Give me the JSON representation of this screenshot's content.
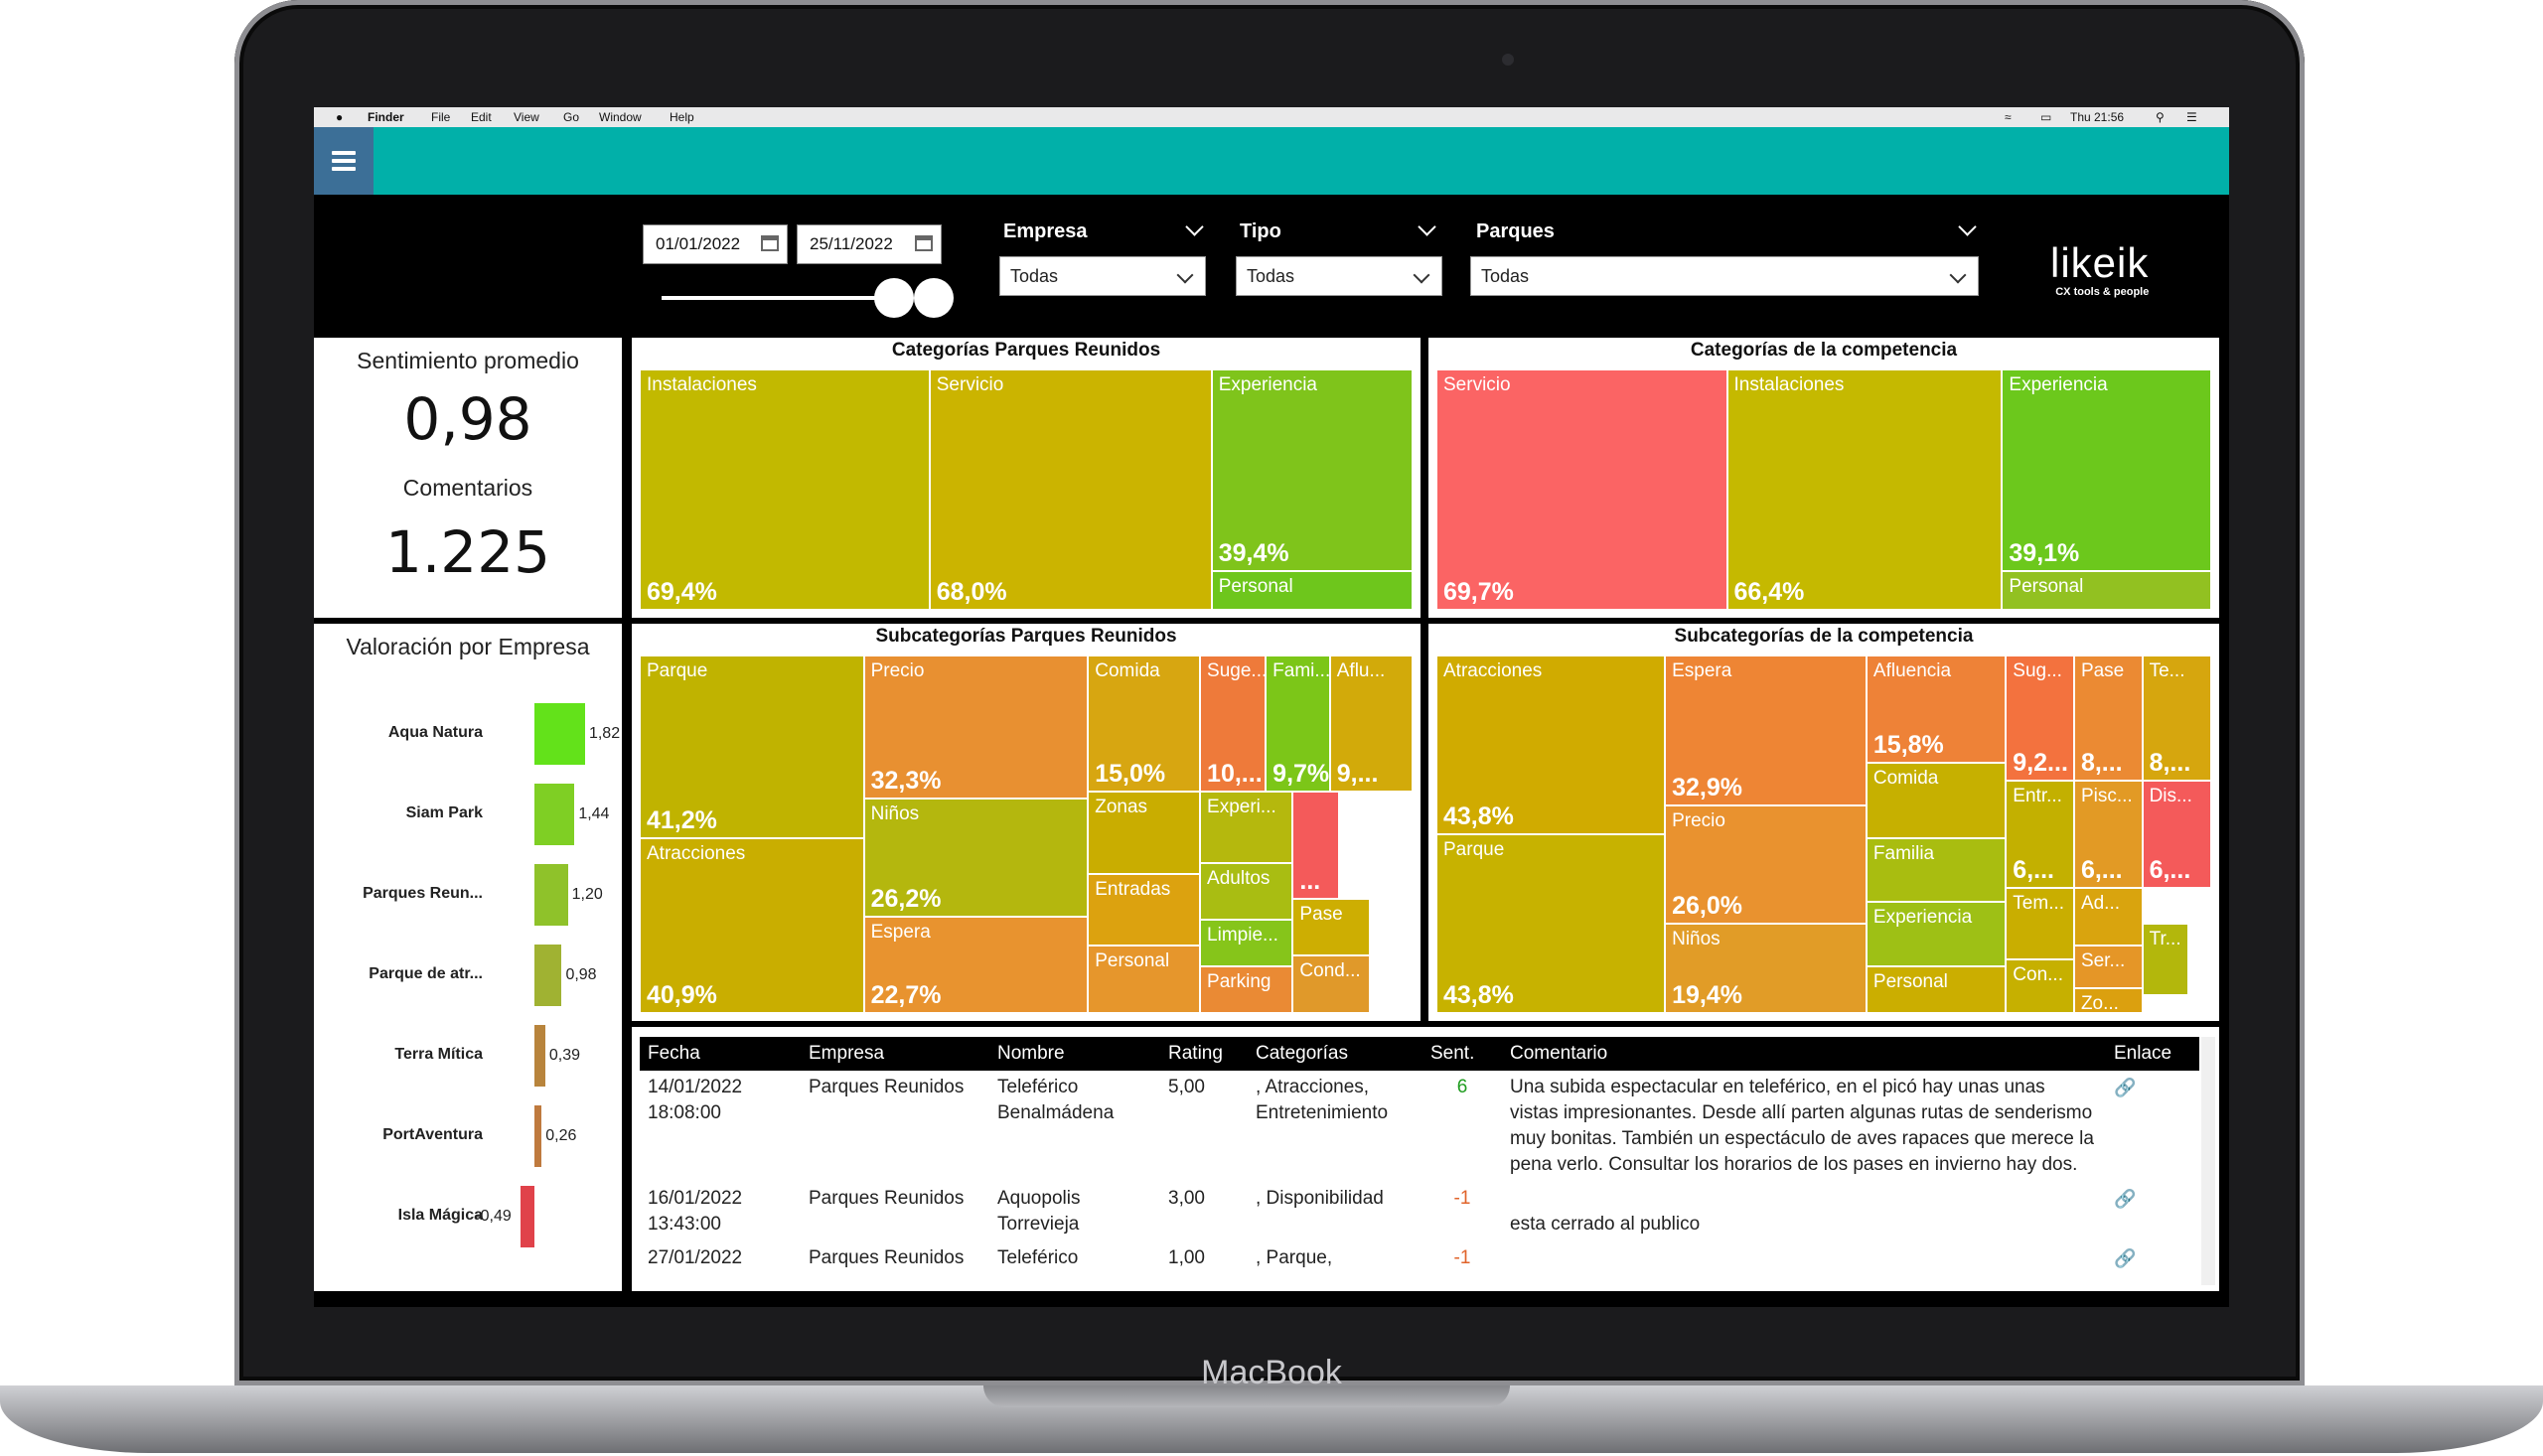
{
  "device": {
    "brand": "MacBook"
  },
  "menubar": {
    "app": "Finder",
    "items": [
      "File",
      "Edit",
      "View",
      "Go",
      "Window",
      "Help"
    ],
    "clock": "Thu 21:56"
  },
  "filters": {
    "date_from": "01/01/2022",
    "date_to": "25/11/2022",
    "empresa": {
      "label": "Empresa",
      "value": "Todas"
    },
    "tipo": {
      "label": "Tipo",
      "value": "Todas"
    },
    "parques": {
      "label": "Parques",
      "value": "Todas"
    }
  },
  "logo": {
    "name": "likeik",
    "tagline": "CX tools & people"
  },
  "kpi": {
    "sentiment_label": "Sentimiento promedio",
    "sentiment_value": "0,98",
    "comments_label": "Comentarios",
    "comments_value": "1.225"
  },
  "valoracion": {
    "title": "Valoración por Empresa",
    "items": [
      {
        "name": "Aqua Natura",
        "value": 1.82,
        "label": "1,82",
        "color": "#63e21a"
      },
      {
        "name": "Siam Park",
        "value": 1.44,
        "label": "1,44",
        "color": "#7fcf24"
      },
      {
        "name": "Parques Reun...",
        "value": 1.2,
        "label": "1,20",
        "color": "#8fc22a"
      },
      {
        "name": "Parque de atr...",
        "value": 0.98,
        "label": "0,98",
        "color": "#a0b232"
      },
      {
        "name": "Terra Mítica",
        "value": 0.39,
        "label": "0,39",
        "color": "#b8843c"
      },
      {
        "name": "PortAventura",
        "value": 0.26,
        "label": "0,26",
        "color": "#bf7a3e"
      },
      {
        "name": "Isla Mágica",
        "value": -0.49,
        "label": "-0,49",
        "color": "#e0424a"
      }
    ]
  },
  "treemaps": {
    "cat_pr": {
      "title": "Categorías Parques Reunidos",
      "tiles": [
        {
          "label": "Instalaciones",
          "value": "69,4%",
          "color": "#c2b900"
        },
        {
          "label": "Servicio",
          "value": "68,0%",
          "color": "#cbb400"
        },
        {
          "label": "Experiencia",
          "value": "39,4%",
          "color": "#7fc41b"
        },
        {
          "label": "Personal",
          "value": "",
          "color": "#6ec61c"
        }
      ]
    },
    "cat_comp": {
      "title": "Categorías de la competencia",
      "tiles": [
        {
          "label": "Servicio",
          "value": "69,7%",
          "color": "#fb6464"
        },
        {
          "label": "Instalaciones",
          "value": "66,4%",
          "color": "#c5b900"
        },
        {
          "label": "Experiencia",
          "value": "39,1%",
          "color": "#6cc81c"
        },
        {
          "label": "Personal",
          "value": "",
          "color": "#92c121"
        }
      ]
    },
    "sub_pr": {
      "title": "Subcategorías Parques Reunidos",
      "tiles": [
        {
          "label": "Parque",
          "value": "41,2%",
          "color": "#c0b300"
        },
        {
          "label": "Atracciones",
          "value": "40,9%",
          "color": "#c9ae00"
        },
        {
          "label": "Precio",
          "value": "32,3%",
          "color": "#e89031"
        },
        {
          "label": "Niños",
          "value": "26,2%",
          "color": "#b4b70e"
        },
        {
          "label": "Espera",
          "value": "22,7%",
          "color": "#e8932f"
        },
        {
          "label": "Comida",
          "value": "15,0%",
          "color": "#d7a611"
        },
        {
          "label": "Zonas",
          "value": "",
          "color": "#c9ad00"
        },
        {
          "label": "Entradas",
          "value": "",
          "color": "#dca20f"
        },
        {
          "label": "Personal",
          "value": "",
          "color": "#e6962c"
        },
        {
          "label": "Suge...",
          "value": "10,...",
          "color": "#ee7a3a"
        },
        {
          "label": "Fami...",
          "value": "9,7%",
          "color": "#7cc618"
        },
        {
          "label": "Aflu...",
          "value": "9,...",
          "color": "#d2aa0a"
        },
        {
          "label": "Experi...",
          "value": "",
          "color": "#b5b80d"
        },
        {
          "label": "Adultos",
          "value": "",
          "color": "#a9bd12"
        },
        {
          "label": "Limpie...",
          "value": "",
          "color": "#86c51a"
        },
        {
          "label": "Parking",
          "value": "",
          "color": "#ea8a34"
        },
        {
          "label": "",
          "value": "...",
          "color": "#f45a5a"
        },
        {
          "label": "Pase",
          "value": "",
          "color": "#cdae02"
        },
        {
          "label": "Cond...",
          "value": "",
          "color": "#e0992a"
        }
      ]
    },
    "sub_comp": {
      "title": "Subcategorías de la competencia",
      "tiles": [
        {
          "label": "Atracciones",
          "value": "43,8%",
          "color": "#d0ab00"
        },
        {
          "label": "Parque",
          "value": "43,8%",
          "color": "#c7b200"
        },
        {
          "label": "Espera",
          "value": "32,9%",
          "color": "#ee8534"
        },
        {
          "label": "Precio",
          "value": "26,0%",
          "color": "#e9922f"
        },
        {
          "label": "Niños",
          "value": "19,4%",
          "color": "#e19c27"
        },
        {
          "label": "Afluencia",
          "value": "15,8%",
          "color": "#ee8237"
        },
        {
          "label": "Comida",
          "value": "",
          "color": "#c6b000"
        },
        {
          "label": "Familia",
          "value": "",
          "color": "#a9bd10"
        },
        {
          "label": "Experiencia",
          "value": "",
          "color": "#9ec015"
        },
        {
          "label": "Personal",
          "value": "",
          "color": "#cbae00"
        },
        {
          "label": "Sug...",
          "value": "9,2...",
          "color": "#f3723e"
        },
        {
          "label": "Pase",
          "value": "8,...",
          "color": "#eb8a33"
        },
        {
          "label": "Te...",
          "value": "8,...",
          "color": "#d6a60e"
        },
        {
          "label": "Entr...",
          "value": "6,...",
          "color": "#c3b000"
        },
        {
          "label": "Pisc...",
          "value": "6,...",
          "color": "#e29a25"
        },
        {
          "label": "Dis...",
          "value": "6,...",
          "color": "#f45a5a"
        },
        {
          "label": "Tem...",
          "value": "",
          "color": "#c9ae00"
        },
        {
          "label": "Ad...",
          "value": "",
          "color": "#d9a40e"
        },
        {
          "label": "Ser...",
          "value": "",
          "color": "#e59627"
        },
        {
          "label": "Con...",
          "value": "",
          "color": "#c6b000"
        },
        {
          "label": "Zo...",
          "value": "",
          "color": "#dba00f"
        },
        {
          "label": "Tr...",
          "value": "",
          "color": "#b3b70c"
        }
      ]
    }
  },
  "table": {
    "columns": [
      "Fecha",
      "Empresa",
      "Nombre",
      "Rating",
      "Categorías",
      "Sent.",
      "Comentario",
      "Enlace"
    ],
    "rows": [
      {
        "fecha": "14/01/2022 18:08:00",
        "empresa": "Parques Reunidos",
        "nombre": "Teleférico Benalmádena",
        "rating": "5,00",
        "categorias": ", Atracciones, Entretenimiento",
        "sent": "6",
        "comentario": "Una subida espectacular en teleférico, en el picó hay unas unas vistas impresionantes. Desde allí parten algunas rutas de senderismo muy bonitas. También un espectáculo de aves rapaces que merece la pena verlo. Consultar los horarios de los pases en invierno hay dos."
      },
      {
        "fecha": "16/01/2022 13:43:00",
        "empresa": "Parques Reunidos",
        "nombre": "Aquopolis Torrevieja",
        "rating": "3,00",
        "categorias": ", Disponibilidad",
        "sent": "-1",
        "comentario": "esta cerrado al publico"
      },
      {
        "fecha": "27/01/2022",
        "empresa": "Parques Reunidos",
        "nombre": "Teleférico",
        "rating": "1,00",
        "categorias": ", Parque,",
        "sent": "-1",
        "comentario": ""
      }
    ]
  }
}
